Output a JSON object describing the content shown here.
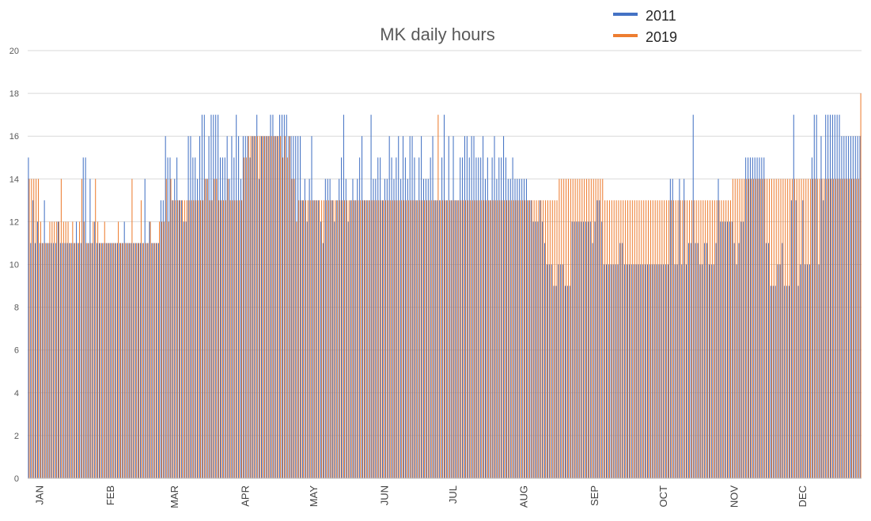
{
  "chart_data": {
    "type": "bar",
    "title": "MK daily hours",
    "xlabel": "",
    "ylabel": "",
    "ylim": [
      0,
      20
    ],
    "yticks": [
      0,
      2,
      4,
      6,
      8,
      10,
      12,
      14,
      16,
      18,
      20
    ],
    "grid": true,
    "legend": "top-right",
    "months": [
      "JAN",
      "FEB",
      "MAR",
      "APR",
      "MAY",
      "JUN",
      "JUL",
      "AUG",
      "SEP",
      "OCT",
      "NOV",
      "DEC"
    ],
    "series": [
      {
        "name": "2011",
        "color": "#4472C4",
        "monthly_values": [
          [
            15,
            11,
            13,
            11,
            12,
            11,
            11,
            13,
            11,
            11,
            11,
            11,
            11,
            12,
            11,
            11,
            11,
            11,
            11,
            11,
            11,
            12,
            11,
            11,
            15,
            15,
            11,
            14,
            11,
            12,
            11
          ],
          [
            11,
            11,
            11,
            11,
            11,
            11,
            11,
            11,
            11,
            11,
            11,
            12,
            11,
            11,
            11,
            11,
            11,
            11,
            11,
            11,
            14,
            11,
            12,
            11,
            11,
            11,
            11,
            13
          ],
          [
            13,
            16,
            15,
            15,
            13,
            14,
            15,
            13,
            13,
            12,
            12,
            16,
            16,
            15,
            15,
            14,
            16,
            17,
            17,
            14,
            16,
            17,
            17,
            17,
            17,
            15,
            15,
            15,
            16,
            14,
            16
          ],
          [
            15,
            17,
            16,
            14,
            16,
            16,
            16,
            15,
            16,
            16,
            17,
            14,
            16,
            16,
            16,
            16,
            17,
            17,
            16,
            16,
            17,
            17,
            17,
            17,
            16,
            16,
            16,
            16,
            16,
            16
          ],
          [
            13,
            14,
            12,
            14,
            16,
            13,
            13,
            13,
            12,
            11,
            14,
            14,
            14,
            13,
            12,
            13,
            14,
            15,
            17,
            14,
            12,
            13,
            14,
            13,
            14,
            15,
            16,
            13,
            13,
            13,
            17
          ],
          [
            14,
            14,
            15,
            15,
            13,
            14,
            14,
            16,
            15,
            14,
            15,
            16,
            14,
            16,
            15,
            14,
            16,
            16,
            15,
            13,
            15,
            16,
            14,
            14,
            14,
            15,
            16,
            13,
            13,
            13
          ],
          [
            15,
            17,
            13,
            16,
            13,
            16,
            13,
            13,
            15,
            15,
            16,
            16,
            15,
            16,
            16,
            15,
            15,
            15,
            16,
            14,
            15,
            13,
            15,
            16,
            14,
            15,
            15,
            16,
            15,
            14,
            14
          ],
          [
            15,
            14,
            14,
            14,
            14,
            14,
            14,
            13,
            13,
            12,
            12,
            12,
            13,
            12,
            11,
            10,
            10,
            10,
            9,
            9,
            10,
            10,
            10,
            9,
            9,
            9,
            12,
            12,
            12,
            12,
            12
          ],
          [
            12,
            12,
            12,
            12,
            11,
            12,
            13,
            13,
            12,
            10,
            10,
            10,
            10,
            10,
            10,
            10,
            11,
            11,
            10,
            10,
            10,
            10,
            10,
            10,
            10,
            10,
            10,
            10,
            10,
            10
          ],
          [
            10,
            10,
            10,
            10,
            10,
            10,
            10,
            10,
            14,
            14,
            10,
            10,
            14,
            10,
            14,
            10,
            11,
            11,
            17,
            11,
            11,
            10,
            10,
            11,
            11,
            10,
            10,
            10,
            11,
            14,
            12
          ],
          [
            12,
            12,
            12,
            12,
            12,
            11,
            10,
            11,
            12,
            12,
            15,
            15,
            15,
            15,
            15,
            15,
            15,
            15,
            15,
            11,
            11,
            9,
            9,
            9,
            10,
            10,
            11,
            9,
            9,
            9
          ],
          [
            13,
            17,
            13,
            9,
            10,
            13,
            10,
            10,
            10,
            15,
            17,
            17,
            10,
            16,
            13,
            17,
            17,
            17,
            17,
            17,
            17,
            17,
            16,
            16,
            16,
            16,
            16,
            16,
            16,
            16,
            16
          ]
        ]
      },
      {
        "name": "2019",
        "color": "#ED7D31",
        "monthly_values": [
          [
            14,
            14,
            14,
            14,
            14,
            12,
            11,
            11,
            11,
            12,
            12,
            12,
            12,
            12,
            14,
            12,
            12,
            12,
            11,
            12,
            11,
            11,
            12,
            14,
            12,
            11,
            11,
            11,
            12,
            14,
            12
          ],
          [
            11,
            11,
            12,
            11,
            11,
            11,
            11,
            11,
            12,
            11,
            11,
            11,
            11,
            11,
            14,
            11,
            11,
            11,
            13,
            11,
            11,
            11,
            12,
            11,
            11,
            11,
            12,
            12
          ],
          [
            12,
            14,
            12,
            14,
            13,
            13,
            13,
            13,
            13,
            13,
            13,
            13,
            13,
            13,
            13,
            13,
            13,
            13,
            14,
            14,
            13,
            13,
            14,
            14,
            13,
            13,
            13,
            13,
            14,
            13,
            13
          ],
          [
            13,
            13,
            13,
            13,
            15,
            15,
            16,
            16,
            16,
            16,
            16,
            16,
            16,
            16,
            16,
            16,
            16,
            16,
            16,
            16,
            16,
            15,
            16,
            15,
            16,
            14,
            14,
            12,
            13,
            13
          ],
          [
            13,
            13,
            13,
            13,
            13,
            13,
            13,
            13,
            13,
            13,
            13,
            13,
            13,
            13,
            13,
            13,
            13,
            13,
            13,
            13,
            13,
            13,
            13,
            13,
            13,
            13,
            13,
            13,
            13,
            13,
            13
          ],
          [
            13,
            13,
            13,
            13,
            13,
            13,
            13,
            13,
            13,
            13,
            13,
            13,
            13,
            13,
            13,
            13,
            13,
            13,
            13,
            13,
            13,
            13,
            13,
            13,
            13,
            13,
            13,
            13,
            17,
            13
          ],
          [
            13,
            13,
            13,
            13,
            13,
            13,
            13,
            13,
            13,
            13,
            13,
            13,
            13,
            13,
            13,
            13,
            13,
            13,
            13,
            13,
            13,
            13,
            13,
            13,
            13,
            13,
            13,
            13,
            13,
            13,
            13
          ],
          [
            13,
            13,
            13,
            13,
            13,
            13,
            13,
            13,
            13,
            13,
            13,
            13,
            13,
            13,
            13,
            13,
            13,
            13,
            13,
            13,
            14,
            14,
            14,
            14,
            14,
            14,
            14,
            14,
            14,
            14,
            14
          ],
          [
            14,
            14,
            14,
            14,
            14,
            14,
            14,
            14,
            14,
            13,
            13,
            13,
            13,
            13,
            13,
            13,
            13,
            13,
            13,
            13,
            13,
            13,
            13,
            13,
            13,
            13,
            13,
            13,
            13,
            13
          ],
          [
            13,
            13,
            13,
            13,
            13,
            13,
            13,
            13,
            13,
            13,
            13,
            13,
            13,
            13,
            13,
            13,
            13,
            13,
            13,
            13,
            13,
            13,
            13,
            13,
            13,
            13,
            13,
            13,
            13,
            13,
            13
          ],
          [
            13,
            13,
            13,
            13,
            14,
            14,
            14,
            14,
            14,
            14,
            14,
            14,
            14,
            14,
            14,
            14,
            14,
            14,
            14,
            14,
            14,
            14,
            14,
            14,
            14,
            14,
            14,
            14,
            14,
            14
          ],
          [
            14,
            14,
            14,
            14,
            14,
            14,
            14,
            14,
            14,
            14,
            14,
            14,
            14,
            14,
            14,
            14,
            14,
            14,
            14,
            14,
            14,
            14,
            14,
            14,
            14,
            14,
            14,
            14,
            14,
            14,
            18
          ]
        ]
      }
    ]
  }
}
